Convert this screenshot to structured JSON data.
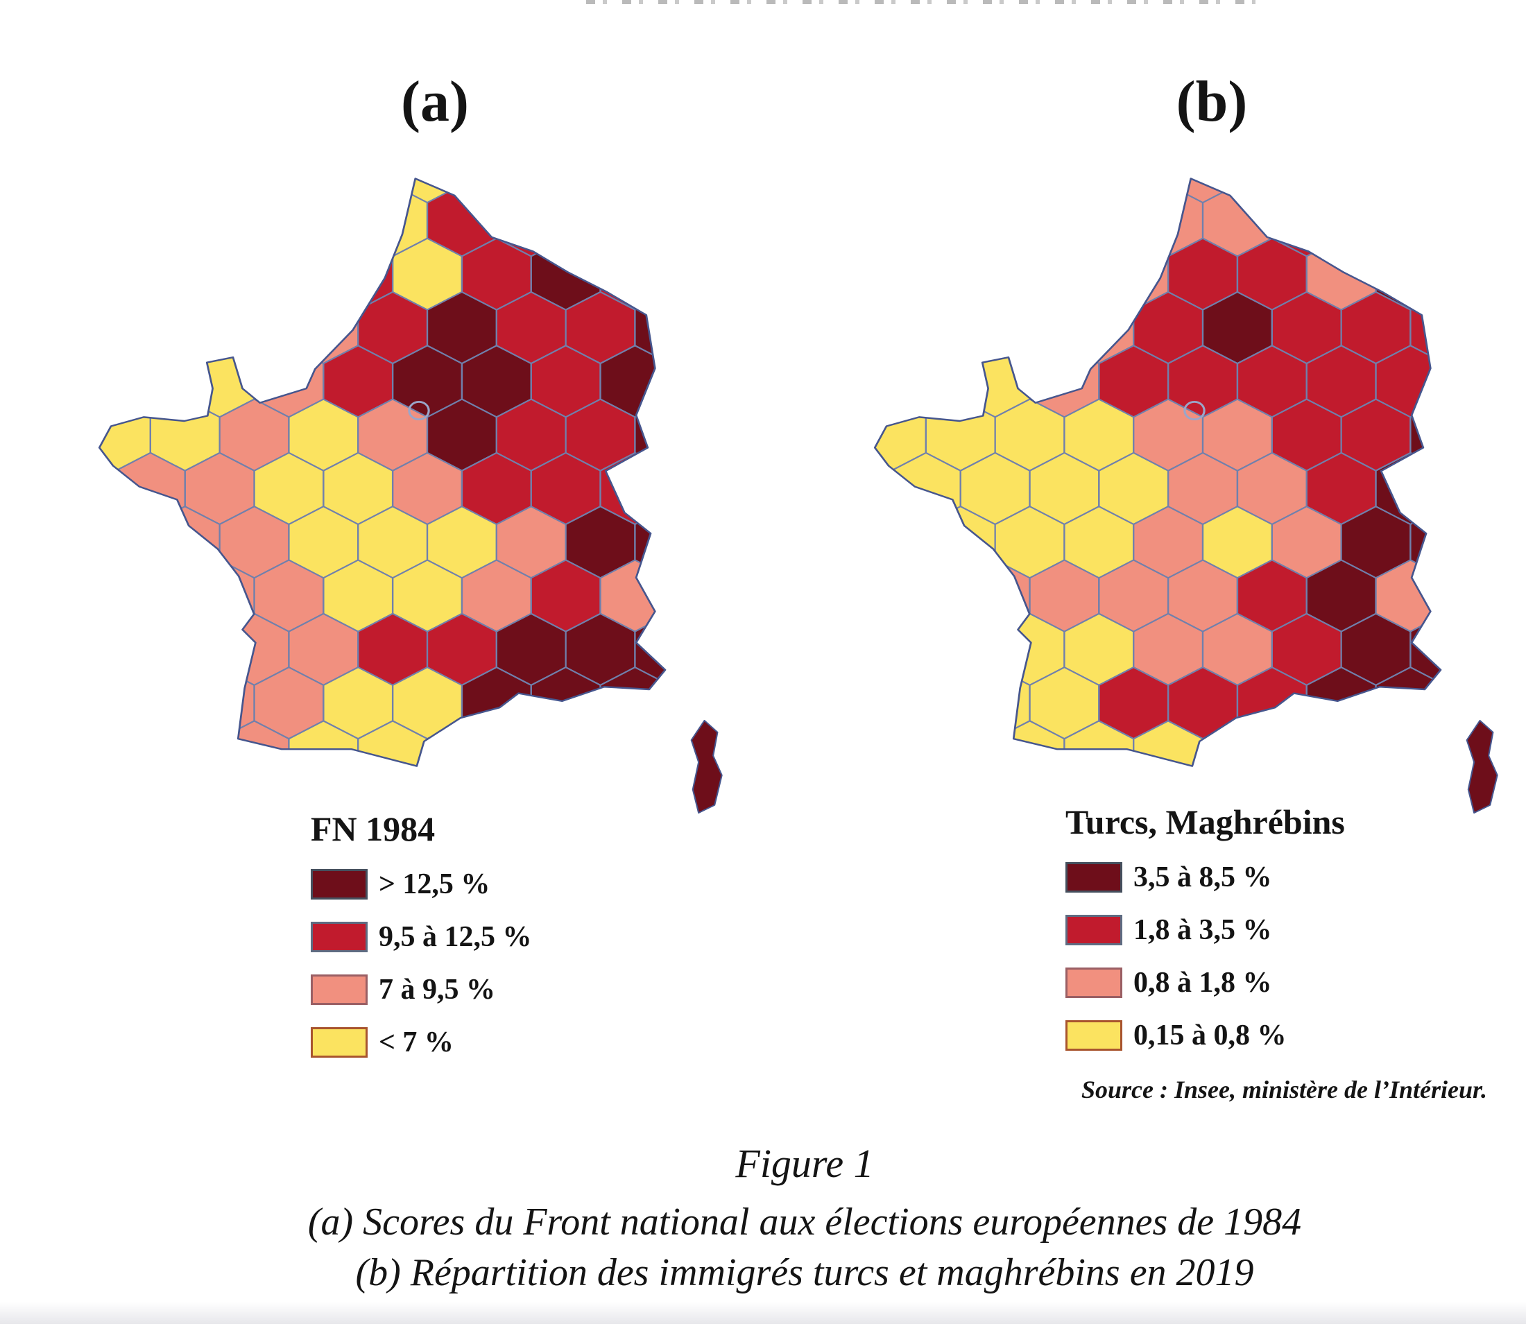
{
  "figure": {
    "panel_a": {
      "label": "(a)",
      "legend_title": "FN 1984",
      "classes": [
        {
          "label": "> 12,5 %",
          "color": "#6E0E1A",
          "border": "#45505E"
        },
        {
          "label": "9,5 à 12,5 %",
          "color": "#C11B2D",
          "border": "#5E6C82"
        },
        {
          "label": "7 à 9,5 %",
          "color": "#F1907F",
          "border": "#9A5F64"
        },
        {
          "label": "< 7 %",
          "color": "#FBE360",
          "border": "#A8542E"
        }
      ],
      "choropleth_rows": [
        "11223311111",
        "11223111111",
        "22221310111",
        "22221011000",
        "33321001000",
        "33232011000",
        "22233211100",
        "22233320000",
        "22223321200",
        "22221100000",
        "22223300000",
        "22233000000"
      ],
      "corsica_class": 0
    },
    "panel_b": {
      "label": "(b)",
      "legend_title": "Turcs, Maghrébins",
      "classes": [
        {
          "label": "3,5 à 8,5 %",
          "color": "#6E0E1A",
          "border": "#45505E"
        },
        {
          "label": "1,8 à 3,5 %",
          "color": "#C11B2D",
          "border": "#5E6C82"
        },
        {
          "label": "0,8 à 1,8 %",
          "color": "#F1907F",
          "border": "#9A5F64"
        },
        {
          "label": "0,15 à 0,8 %",
          "color": "#FBE360",
          "border": "#A8542E"
        }
      ],
      "choropleth_rows": [
        "22222211111",
        "22222210011",
        "33322112000",
        "33321011100",
        "33321111100",
        "33332211000",
        "33333221000",
        "23332320000",
        "22222210200",
        "23332210000",
        "33331110000",
        "33333100000"
      ],
      "corsica_class": 0
    },
    "source_note": "Source : Insee, ministère de l’Intérieur.",
    "caption": {
      "title": "Figure 1",
      "line_a": "(a) Scores du Front national aux élections européennes de 1984",
      "line_b": "(b) Répartition des immigrés turcs et maghrébins en 2019"
    }
  },
  "map_style": {
    "category_colors": [
      "#6E0E1A",
      "#C11B2D",
      "#F1907F",
      "#FBE360"
    ],
    "cell_border": "#7080AC",
    "outline": "#46568E",
    "paris_ring": "#9AA6CA"
  }
}
